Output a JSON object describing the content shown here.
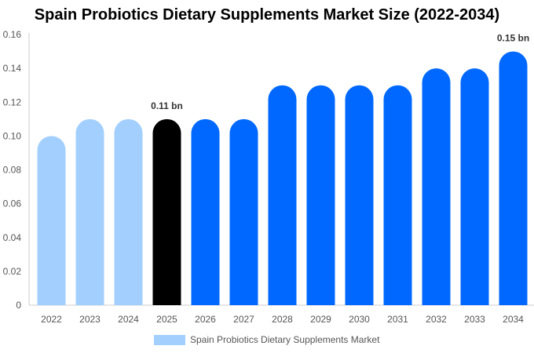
{
  "title": "Spain Probiotics Dietary Supplements Market Size (2022-2034)",
  "colors": {
    "historical": "#a3cfff",
    "current": "#000000",
    "forecast": "#0068ff",
    "axis_text": "#555555",
    "grid": "#e6e6e6"
  },
  "legend": {
    "label": "Spain Probiotics Dietary Supplements Market",
    "color": "#a3cfff"
  },
  "chart_data": {
    "type": "bar",
    "title": "Spain Probiotics Dietary Supplements Market Size (2022-2034)",
    "xlabel": "",
    "ylabel": "",
    "categories": [
      "2022",
      "2023",
      "2024",
      "2025",
      "2026",
      "2027",
      "2028",
      "2029",
      "2030",
      "2031",
      "2032",
      "2033",
      "2034"
    ],
    "series": [
      {
        "name": "Spain Probiotics Dietary Supplements Market",
        "values": [
          0.1,
          0.11,
          0.11,
          0.11,
          0.11,
          0.11,
          0.13,
          0.13,
          0.13,
          0.13,
          0.14,
          0.14,
          0.15
        ]
      }
    ],
    "bar_groups": [
      "historical",
      "historical",
      "historical",
      "current",
      "forecast",
      "forecast",
      "forecast",
      "forecast",
      "forecast",
      "forecast",
      "forecast",
      "forecast",
      "forecast"
    ],
    "ylim": [
      0,
      0.16
    ],
    "yticks": [
      "0",
      "0.02",
      "0.04",
      "0.06",
      "0.08",
      "0.10",
      "0.12",
      "0.14",
      "0.16"
    ],
    "grid": false,
    "legend_position": "bottom",
    "annotations": [
      {
        "category": "2025",
        "text": "0.11 bn"
      },
      {
        "category": "2034",
        "text": "0.15 bn"
      }
    ]
  }
}
